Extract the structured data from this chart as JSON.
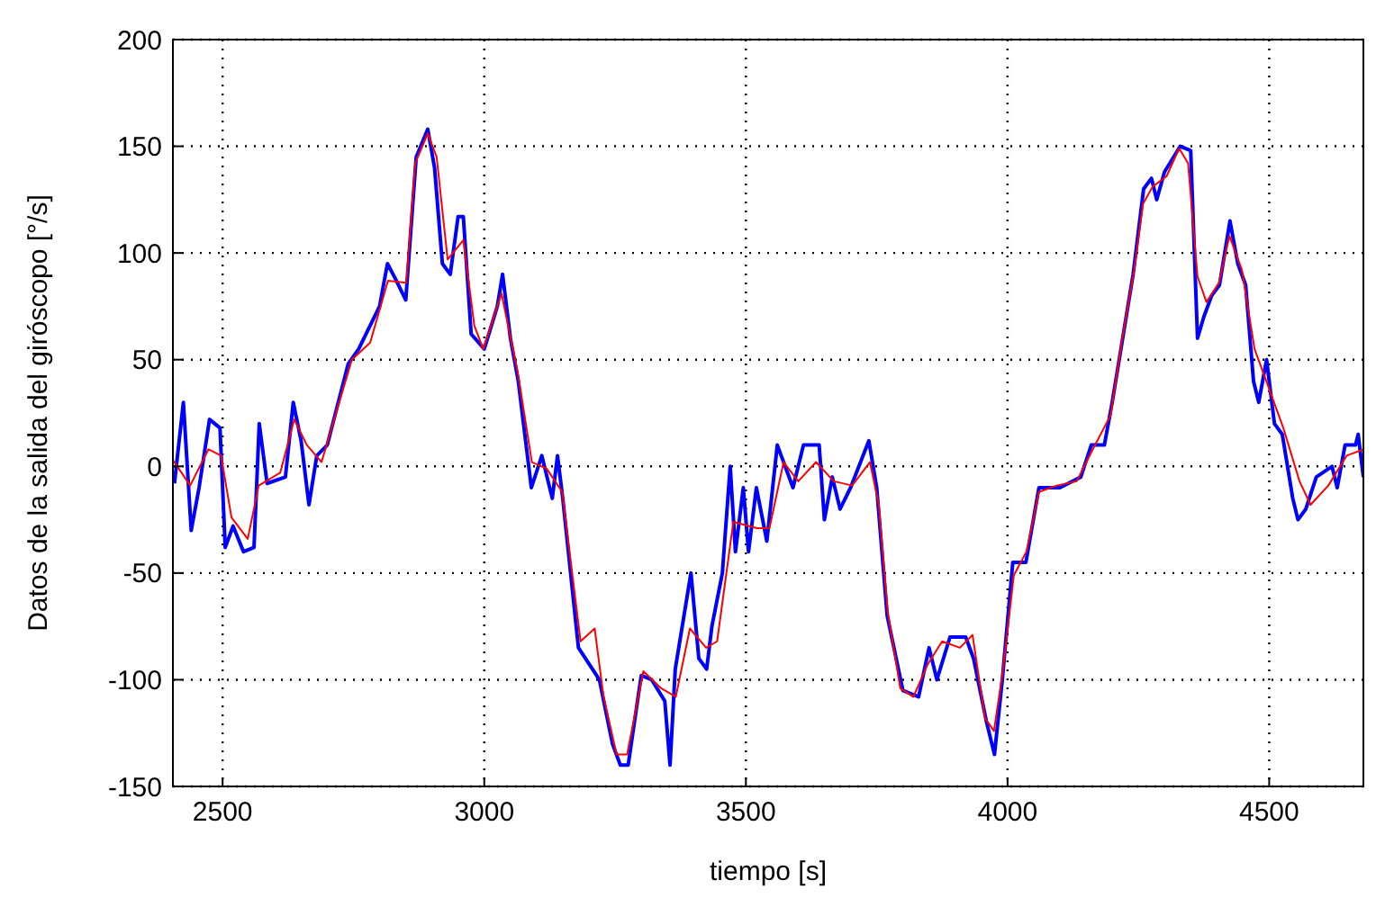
{
  "chart_data": {
    "type": "line",
    "xlabel": "tiempo [s]",
    "ylabel": "Datos de la salida del giróscopo [°/s]",
    "xlim": [
      2405,
      4680
    ],
    "xticks": [
      2500,
      3000,
      3500,
      4000,
      4500
    ],
    "ylim": [
      -150,
      200
    ],
    "yticks": [
      -150,
      -100,
      -50,
      0,
      50,
      100,
      150,
      200
    ],
    "grid": true,
    "series": [
      {
        "color": "#0000ff",
        "x": [
          2408,
          2425,
          2440,
          2455,
          2475,
          2495,
          2505,
          2520,
          2540,
          2560,
          2570,
          2585,
          2620,
          2635,
          2650,
          2665,
          2680,
          2700,
          2740,
          2760,
          2800,
          2815,
          2830,
          2850,
          2870,
          2892,
          2905,
          2920,
          2935,
          2950,
          2960,
          2975,
          3000,
          3025,
          3035,
          3050,
          3065,
          3090,
          3110,
          3130,
          3140,
          3150,
          3180,
          3220,
          3245,
          3260,
          3275,
          3300,
          3320,
          3345,
          3355,
          3365,
          3385,
          3395,
          3410,
          3425,
          3435,
          3455,
          3470,
          3480,
          3495,
          3505,
          3520,
          3540,
          3560,
          3575,
          3590,
          3610,
          3640,
          3650,
          3665,
          3680,
          3700,
          3735,
          3750,
          3770,
          3800,
          3830,
          3850,
          3865,
          3890,
          3920,
          3935,
          3960,
          3975,
          3990,
          4010,
          4035,
          4060,
          4100,
          4140,
          4160,
          4185,
          4200,
          4240,
          4260,
          4275,
          4285,
          4300,
          4330,
          4350,
          4363,
          4375,
          4390,
          4405,
          4425,
          4440,
          4455,
          4470,
          4480,
          4495,
          4510,
          4525,
          4545,
          4555,
          4570,
          4590,
          4620,
          4630,
          4645,
          4665,
          4670,
          4680
        ],
        "values": [
          -8,
          30,
          -30,
          -10,
          22,
          18,
          -38,
          -28,
          -40,
          -38,
          20,
          -8,
          -5,
          30,
          12,
          -18,
          5,
          10,
          48,
          55,
          75,
          95,
          88,
          78,
          145,
          158,
          140,
          95,
          90,
          117,
          117,
          62,
          55,
          75,
          90,
          60,
          40,
          -10,
          5,
          -15,
          5,
          -15,
          -85,
          -100,
          -130,
          -140,
          -140,
          -98,
          -100,
          -110,
          -140,
          -95,
          -65,
          -50,
          -90,
          -95,
          -75,
          -50,
          0,
          -40,
          -10,
          -40,
          -10,
          -35,
          10,
          0,
          -10,
          10,
          10,
          -25,
          -5,
          -20,
          -10,
          12,
          -10,
          -70,
          -105,
          -108,
          -85,
          -100,
          -80,
          -80,
          -90,
          -120,
          -135,
          -100,
          -45,
          -45,
          -10,
          -10,
          -5,
          10,
          10,
          30,
          90,
          130,
          135,
          125,
          138,
          150,
          148,
          60,
          70,
          80,
          85,
          115,
          95,
          85,
          40,
          30,
          50,
          20,
          15,
          -15,
          -25,
          -20,
          -5,
          0,
          -10,
          10,
          10,
          15,
          -5
        ]
      },
      {
        "color": "#ff0000",
        "x": [
          2405,
          2438,
          2473,
          2497,
          2517,
          2548,
          2569,
          2610,
          2637,
          2661,
          2689,
          2747,
          2782,
          2816,
          2851,
          2868,
          2892,
          2909,
          2930,
          2960,
          2981,
          2998,
          3033,
          3064,
          3091,
          3119,
          3149,
          3184,
          3211,
          3228,
          3253,
          3273,
          3304,
          3338,
          3366,
          3393,
          3424,
          3445,
          3476,
          3521,
          3545,
          3572,
          3600,
          3634,
          3668,
          3703,
          3737,
          3754,
          3771,
          3795,
          3820,
          3847,
          3875,
          3909,
          3933,
          3957,
          3974,
          3991,
          4012,
          4036,
          4060,
          4094,
          4132,
          4163,
          4197,
          4218,
          4242,
          4259,
          4277,
          4304,
          4328,
          4345,
          4363,
          4380,
          4404,
          4424,
          4448,
          4472,
          4493,
          4527,
          4558,
          4579,
          4613,
          4648,
          4680
        ],
        "values": [
          3,
          -9,
          8,
          5,
          -24,
          -34,
          -9,
          -3,
          22,
          10,
          2,
          50,
          58,
          87,
          86,
          142,
          156,
          145,
          97,
          106,
          66,
          55,
          81,
          44,
          2,
          -1,
          -12,
          -82,
          -76,
          -108,
          -135,
          -135,
          -96,
          -104,
          -108,
          -76,
          -85,
          -82,
          -26,
          -29,
          -29,
          2,
          -7,
          2,
          -7,
          -9,
          2,
          -18,
          -68,
          -104,
          -108,
          -93,
          -82,
          -85,
          -79,
          -118,
          -124,
          -96,
          -51,
          -40,
          -12,
          -9,
          -7,
          8,
          24,
          58,
          92,
          123,
          131,
          136,
          149,
          142,
          89,
          77,
          86,
          108,
          92,
          55,
          41,
          18,
          -7,
          -18,
          -9,
          5,
          8
        ]
      }
    ]
  }
}
